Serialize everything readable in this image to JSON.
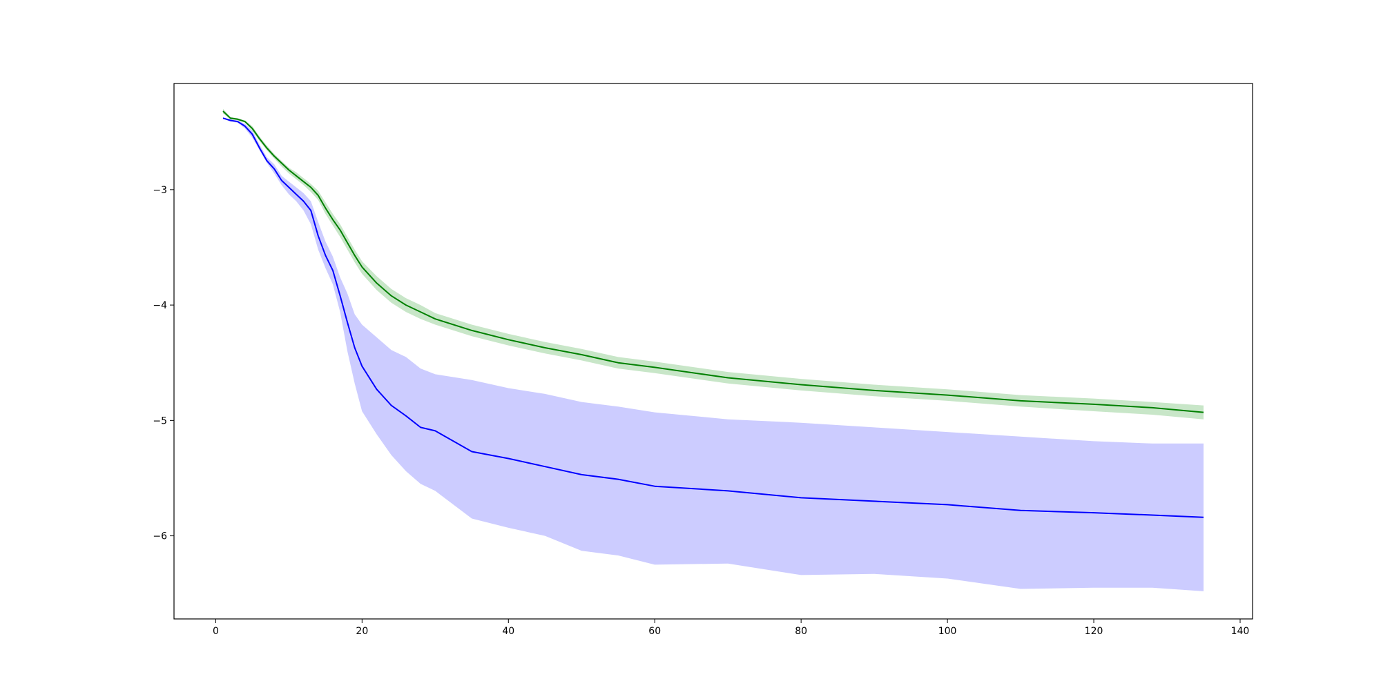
{
  "chart_data": {
    "type": "line",
    "title": "",
    "xlabel": "",
    "ylabel": "",
    "xlim": [
      -5.7,
      141.7
    ],
    "ylim": [
      -6.72,
      -2.08
    ],
    "x_ticks": [
      0,
      20,
      40,
      60,
      80,
      100,
      120,
      140
    ],
    "y_ticks": [
      -6,
      -5,
      -4,
      -3
    ],
    "x_tick_labels": [
      "0",
      "20",
      "40",
      "60",
      "80",
      "100",
      "120",
      "140"
    ],
    "y_tick_labels": [
      "−6",
      "−5",
      "−4",
      "−3"
    ],
    "grid": false,
    "legend": "none",
    "series": [
      {
        "color": "#0000ff",
        "band_color": "#ccccff",
        "x": [
          1,
          2,
          3,
          4,
          5,
          6,
          7,
          8,
          9,
          10,
          11,
          12,
          13,
          14,
          15,
          16,
          17,
          18,
          19,
          20,
          22,
          24,
          26,
          28,
          30,
          35,
          40,
          45,
          50,
          55,
          60,
          70,
          80,
          90,
          100,
          110,
          120,
          128,
          135
        ],
        "mean": [
          -2.38,
          -2.4,
          -2.41,
          -2.45,
          -2.52,
          -2.64,
          -2.75,
          -2.82,
          -2.92,
          -2.98,
          -3.04,
          -3.1,
          -3.18,
          -3.4,
          -3.57,
          -3.7,
          -3.92,
          -4.15,
          -4.37,
          -4.53,
          -4.73,
          -4.87,
          -4.96,
          -5.06,
          -5.09,
          -5.27,
          -5.33,
          -5.4,
          -5.47,
          -5.51,
          -5.57,
          -5.61,
          -5.67,
          -5.7,
          -5.73,
          -5.78,
          -5.8,
          -5.82,
          -5.84
        ],
        "lower": [
          -2.38,
          -2.41,
          -2.42,
          -2.47,
          -2.55,
          -2.66,
          -2.77,
          -2.86,
          -2.96,
          -3.04,
          -3.1,
          -3.18,
          -3.3,
          -3.52,
          -3.68,
          -3.82,
          -4.06,
          -4.4,
          -4.68,
          -4.92,
          -5.12,
          -5.3,
          -5.44,
          -5.55,
          -5.61,
          -5.85,
          -5.93,
          -6.0,
          -6.13,
          -6.17,
          -6.25,
          -6.24,
          -6.34,
          -6.33,
          -6.37,
          -6.46,
          -6.45,
          -6.45,
          -6.48
        ],
        "upper": [
          -2.38,
          -2.39,
          -2.4,
          -2.43,
          -2.49,
          -2.61,
          -2.72,
          -2.78,
          -2.88,
          -2.93,
          -2.98,
          -3.03,
          -3.1,
          -3.28,
          -3.45,
          -3.58,
          -3.76,
          -3.9,
          -4.08,
          -4.17,
          -4.28,
          -4.39,
          -4.45,
          -4.55,
          -4.6,
          -4.65,
          -4.72,
          -4.77,
          -4.84,
          -4.88,
          -4.93,
          -4.99,
          -5.02,
          -5.06,
          -5.1,
          -5.14,
          -5.18,
          -5.2,
          -5.2
        ]
      },
      {
        "color": "#008000",
        "band_color": "#c8e6c8",
        "x": [
          1,
          2,
          3,
          4,
          5,
          6,
          7,
          8,
          9,
          10,
          11,
          12,
          13,
          14,
          15,
          16,
          17,
          18,
          19,
          20,
          22,
          24,
          26,
          28,
          30,
          35,
          40,
          45,
          50,
          55,
          60,
          70,
          80,
          90,
          100,
          110,
          120,
          128,
          135
        ],
        "mean": [
          -2.32,
          -2.38,
          -2.39,
          -2.41,
          -2.47,
          -2.56,
          -2.64,
          -2.71,
          -2.77,
          -2.83,
          -2.88,
          -2.93,
          -2.98,
          -3.05,
          -3.16,
          -3.26,
          -3.35,
          -3.46,
          -3.57,
          -3.67,
          -3.81,
          -3.92,
          -4.0,
          -4.06,
          -4.12,
          -4.22,
          -4.3,
          -4.37,
          -4.43,
          -4.5,
          -4.54,
          -4.63,
          -4.69,
          -4.74,
          -4.78,
          -4.83,
          -4.86,
          -4.89,
          -4.93
        ],
        "lower": [
          -2.34,
          -2.39,
          -2.4,
          -2.42,
          -2.49,
          -2.58,
          -2.66,
          -2.73,
          -2.8,
          -2.86,
          -2.91,
          -2.96,
          -3.02,
          -3.09,
          -3.21,
          -3.31,
          -3.41,
          -3.52,
          -3.63,
          -3.73,
          -3.87,
          -3.98,
          -4.06,
          -4.12,
          -4.17,
          -4.27,
          -4.35,
          -4.42,
          -4.48,
          -4.55,
          -4.59,
          -4.68,
          -4.74,
          -4.79,
          -4.83,
          -4.88,
          -4.92,
          -4.95,
          -4.99
        ],
        "upper": [
          -2.3,
          -2.37,
          -2.38,
          -2.4,
          -2.45,
          -2.54,
          -2.62,
          -2.69,
          -2.75,
          -2.81,
          -2.85,
          -2.9,
          -2.95,
          -3.01,
          -3.11,
          -3.21,
          -3.3,
          -3.41,
          -3.52,
          -3.62,
          -3.75,
          -3.86,
          -3.94,
          -4.0,
          -4.07,
          -4.17,
          -4.25,
          -4.32,
          -4.38,
          -4.45,
          -4.49,
          -4.58,
          -4.64,
          -4.69,
          -4.73,
          -4.78,
          -4.81,
          -4.84,
          -4.87
        ]
      }
    ]
  }
}
